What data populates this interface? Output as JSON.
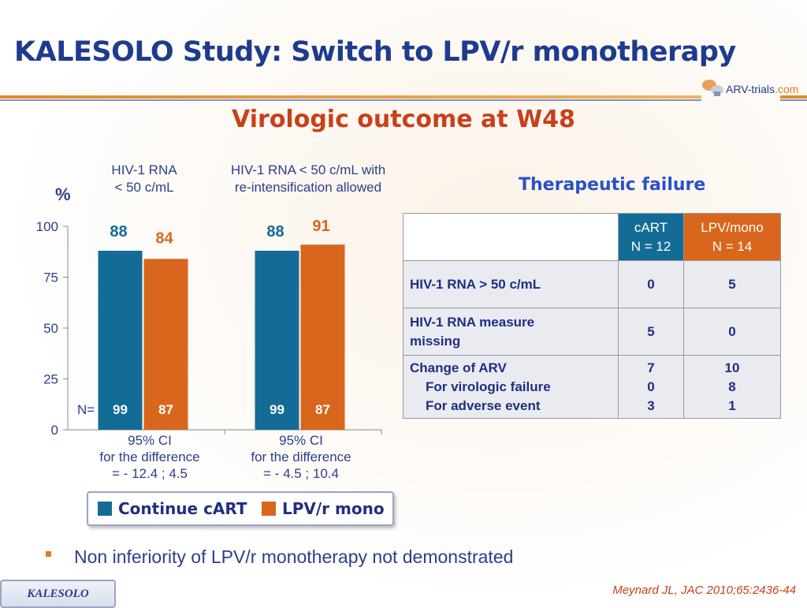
{
  "title": "KALESOLO Study: Switch to LPV/r monotherapy",
  "logo": {
    "main": "ARV-trials",
    "suffix": ".com"
  },
  "subtitle": "Virologic outcome at W48",
  "colors": {
    "cart": "#136c96",
    "mono": "#d9661d",
    "title": "#1f3b8f",
    "accent": "#c8401a"
  },
  "chart_data": {
    "type": "bar",
    "ylabel": "%",
    "ylim": [
      0,
      100
    ],
    "yticks": [
      "0",
      "25",
      "50",
      "75",
      "100"
    ],
    "groups": [
      {
        "label_line1": "HIV-1 RNA",
        "label_line2": "< 50 c/mL",
        "ci_line1": "95% CI",
        "ci_line2": "for the difference",
        "ci_line3": "= - 12.4 ; 4.5"
      },
      {
        "label_line1": "HIV-1 RNA < 50 c/mL with",
        "label_line2": "re-intensification allowed",
        "ci_line1": "95% CI",
        "ci_line2": "for the difference",
        "ci_line3": "= - 4.5 ; 10.4"
      }
    ],
    "series": [
      {
        "name": "Continue cART",
        "values": [
          88,
          88
        ],
        "labels": [
          "88",
          "88"
        ],
        "n": [
          "99",
          "99"
        ]
      },
      {
        "name": "LPV/r mono",
        "values": [
          84,
          91
        ],
        "labels": [
          "84",
          "91"
        ],
        "n": [
          "87",
          "87"
        ]
      }
    ],
    "n_label": "N="
  },
  "table": {
    "title": "Therapeutic failure",
    "col1_line1": "cART",
    "col1_line2": "N = 12",
    "col2_line1": "LPV/mono",
    "col2_line2": "N = 14",
    "rows": [
      {
        "label": "HIV-1 RNA > 50 c/mL",
        "cart": "0",
        "mono": "5"
      },
      {
        "label_line1": "HIV-1 RNA measure",
        "label_line2": "missing",
        "cart": "5",
        "mono": "0"
      },
      {
        "label_line1": "Change of ARV",
        "label_line2": "For virologic failure",
        "label_line3": "For adverse event",
        "cart1": "7",
        "cart2": "0",
        "cart3": "3",
        "mono1": "10",
        "mono2": "8",
        "mono3": "1"
      }
    ]
  },
  "conclusion": "Non inferiority of LPV/r monotherapy not demonstrated",
  "footer_tag": "KALESOLO",
  "citation": "Meynard JL, JAC 2010;65:2436-44"
}
